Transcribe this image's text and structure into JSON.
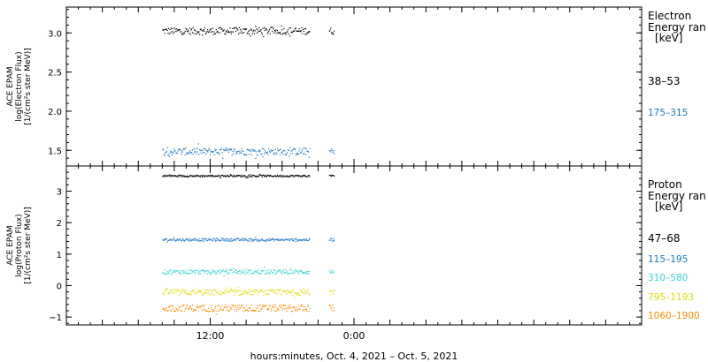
{
  "chart_data": [
    {
      "type": "scatter",
      "ylabel_lines": [
        "ACE EPAM",
        "log(Electron Flux)",
        "[1/(cm²s ster MeV)]"
      ],
      "ylim": [
        1.3,
        3.33
      ],
      "yticks": [
        1.5,
        2.0,
        2.5,
        3.0
      ],
      "ytick_labels": [
        "1.5",
        "2.0",
        "2.5",
        "3.0"
      ],
      "legend_title": [
        "Electron",
        "Energy ran",
        "[keV]"
      ],
      "series": [
        {
          "name": "38–53",
          "color": "#000000",
          "base": 3.03,
          "noise": 0.045
        },
        {
          "name": "175–315",
          "color": "#1f77c4",
          "base": 1.49,
          "noise": 0.045
        }
      ]
    },
    {
      "type": "scatter",
      "ylabel_lines": [
        "ACE EPAM",
        "log(Proton Flux)",
        "[1/(cm²s ster MeV)]"
      ],
      "ylim": [
        -1.25,
        3.8
      ],
      "yticks": [
        -1,
        0,
        1,
        2,
        3
      ],
      "ytick_labels": [
        "−1",
        "0",
        "1",
        "2",
        "3"
      ],
      "legend_title": [
        "Proton",
        "Energy ran",
        "[keV]"
      ],
      "series": [
        {
          "name": "47–68",
          "color": "#000000",
          "base": 3.5,
          "noise": 0.03
        },
        {
          "name": "115–195",
          "color": "#1f77c4",
          "base": 1.47,
          "noise": 0.04
        },
        {
          "name": "310–580",
          "color": "#33d4d4",
          "base": 0.45,
          "noise": 0.07
        },
        {
          "name": "795–1193",
          "color": "#dddd00",
          "base": -0.2,
          "noise": 0.09
        },
        {
          "name": "1060–1900",
          "color": "#ff8800",
          "base": -0.7,
          "noise": 0.11
        }
      ]
    }
  ],
  "x_axis": {
    "xlim_hours": [
      0,
      48
    ],
    "data_start_hours": 8,
    "data_gap_hours": [
      20.3,
      21.9
    ],
    "data_end_hours": 22.3,
    "ticks": [
      {
        "hours": 12,
        "label": "12:00"
      },
      {
        "hours": 24,
        "label": "0:00"
      }
    ],
    "minor_every_hours": 1,
    "xlabel": "hours:minutes, Oct.  4, 2021 – Oct.  5, 2021"
  }
}
